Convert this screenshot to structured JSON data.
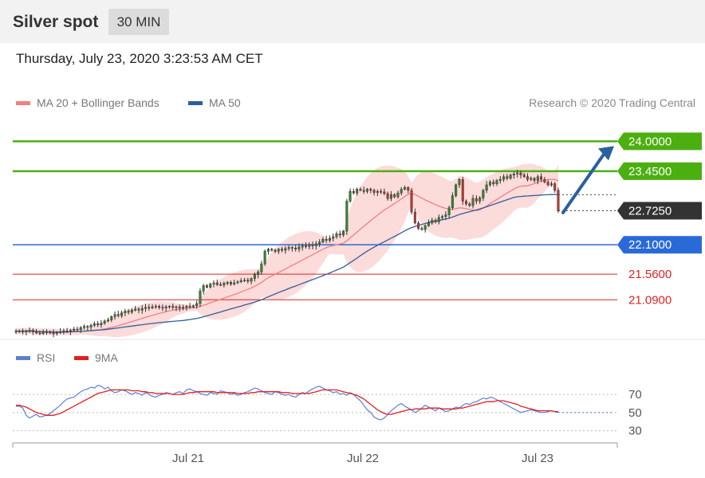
{
  "header": {
    "title": "Silver spot",
    "interval": "30 MIN"
  },
  "timestamp": "Thursday, July 23, 2020 3:23:53 AM CET",
  "legend": {
    "ma20": "MA 20 + Bollinger Bands",
    "ma50": "MA 50",
    "ma20_color": "#f08080",
    "ma50_color": "#2f5f9a",
    "credit": "Research © 2020 Trading Central"
  },
  "rsi_legend": {
    "rsi": "RSI",
    "ma9": "9MA",
    "rsi_color": "#5b7fd6",
    "ma9_color": "#e02020"
  },
  "chart_data": [
    {
      "type": "line",
      "subtype": "candlestick price chart with moving averages",
      "title": "Silver spot",
      "interval": "30 MIN",
      "x_labels": [
        "Jul 21",
        "Jul 22",
        "Jul 23"
      ],
      "ylim": [
        20.45,
        24.4
      ],
      "levels": [
        {
          "value": 24.0,
          "label": "24.0000",
          "kind": "resistance",
          "color": "#4caf10"
        },
        {
          "value": 23.45,
          "label": "23.4500",
          "kind": "resistance",
          "color": "#4caf10"
        },
        {
          "value": 22.725,
          "label": "22.7250",
          "kind": "last price",
          "color": "#333333"
        },
        {
          "value": 22.1,
          "label": "22.1000",
          "kind": "pivot",
          "color": "#2a6ad8"
        },
        {
          "value": 21.56,
          "label": "21.5600",
          "kind": "support",
          "color": "#dd2222"
        },
        {
          "value": 21.09,
          "label": "21.0900",
          "kind": "support",
          "color": "#dd2222"
        }
      ],
      "series": [
        {
          "name": "MA 20 + Bollinger Bands",
          "color": "#f08080"
        },
        {
          "name": "MA 50",
          "color": "#2f5f9a"
        }
      ],
      "closes": [
        20.51,
        20.52,
        20.5,
        20.52,
        20.53,
        20.5,
        20.48,
        20.47,
        20.49,
        20.5,
        20.48,
        20.47,
        20.49,
        20.5,
        20.52,
        20.51,
        20.53,
        20.55,
        20.54,
        20.58,
        20.6,
        20.59,
        20.62,
        20.65,
        20.63,
        20.66,
        20.7,
        20.72,
        20.78,
        20.82,
        20.8,
        20.85,
        20.88,
        20.86,
        20.9,
        20.92,
        20.9,
        20.93,
        20.95,
        20.94,
        20.96,
        20.97,
        20.95,
        20.94,
        20.96,
        20.97,
        20.95,
        20.96,
        20.94,
        20.95,
        20.97,
        20.96,
        20.98,
        21.02,
        21.25,
        21.35,
        21.32,
        21.38,
        21.4,
        21.37,
        21.36,
        21.39,
        21.41,
        21.38,
        21.4,
        21.42,
        21.44,
        21.45,
        21.43,
        21.48,
        21.55,
        21.6,
        21.75,
        21.98,
        22.02,
        22.0,
        21.98,
        22.02,
        22.0,
        22.03,
        22.05,
        22.04,
        22.02,
        22.06,
        22.08,
        22.07,
        22.1,
        22.08,
        22.12,
        22.15,
        22.2,
        22.18,
        22.22,
        22.25,
        22.3,
        22.28,
        22.35,
        22.9,
        23.08,
        23.05,
        23.12,
        23.1,
        23.08,
        23.12,
        23.1,
        23.06,
        23.08,
        23.07,
        23.04,
        22.95,
        23.02,
        22.98,
        23.05,
        23.12,
        23.15,
        23.1,
        22.7,
        22.5,
        22.4,
        22.38,
        22.45,
        22.5,
        22.55,
        22.52,
        22.6,
        22.62,
        22.65,
        22.78,
        23.0,
        23.2,
        23.3,
        22.9,
        22.85,
        22.82,
        22.95,
        22.9,
        22.96,
        23.1,
        23.2,
        23.25,
        23.22,
        23.28,
        23.3,
        23.35,
        23.32,
        23.38,
        23.4,
        23.42,
        23.38,
        23.35,
        23.3,
        23.32,
        23.28,
        23.35,
        23.3,
        23.25,
        23.2,
        23.22,
        23.1,
        22.72
      ]
    },
    {
      "type": "line",
      "title": "RSI",
      "series": [
        {
          "name": "RSI",
          "color": "#5b7fd6"
        },
        {
          "name": "9MA",
          "color": "#e02020"
        }
      ],
      "x_labels": [
        "Jul 21",
        "Jul 22",
        "Jul 23"
      ],
      "y_ticks": [
        70,
        50,
        30
      ],
      "ylim": [
        20,
        85
      ],
      "rsi": [
        57,
        57,
        55,
        47,
        44,
        46,
        48,
        45,
        46,
        47,
        49,
        52,
        55,
        58,
        62,
        65,
        66,
        67,
        70,
        73,
        75,
        76,
        78,
        77,
        80,
        79,
        76,
        78,
        74,
        72,
        73,
        75,
        74,
        72,
        70,
        72,
        71,
        69,
        72,
        70,
        68,
        67,
        69,
        70,
        72,
        71,
        70,
        72,
        73,
        71,
        75,
        76,
        74,
        73,
        71,
        70,
        69,
        72,
        71,
        70,
        74,
        73,
        72,
        70,
        71,
        69,
        70,
        72,
        73,
        75,
        77,
        76,
        74,
        72,
        71,
        70,
        73,
        72,
        70,
        69,
        70,
        68,
        67,
        70,
        72,
        71,
        74,
        76,
        78,
        79,
        77,
        75,
        74,
        72,
        73,
        70,
        71,
        69,
        72,
        70,
        66,
        63,
        58,
        53,
        50,
        45,
        43,
        42,
        44,
        48,
        52,
        55,
        58,
        60,
        57,
        55,
        53,
        50,
        52,
        55,
        58,
        56,
        54,
        52,
        55,
        53,
        51,
        52,
        54,
        56,
        55,
        58,
        60,
        59,
        61,
        62,
        64,
        66,
        65,
        67,
        66,
        64,
        62,
        60,
        58,
        56,
        54,
        52,
        50,
        51,
        52,
        53,
        52,
        51,
        50,
        50,
        51,
        52,
        51,
        50
      ],
      "ma9": [
        58,
        58,
        57,
        56,
        54,
        52,
        50,
        49,
        48,
        47,
        47,
        47,
        48,
        49,
        51,
        53,
        55,
        57,
        59,
        61,
        63,
        65,
        67,
        69,
        71,
        72,
        73,
        74,
        75,
        75,
        75,
        75,
        75,
        75,
        74,
        74,
        74,
        73,
        73,
        72,
        72,
        71,
        71,
        71,
        71,
        71,
        70,
        70,
        70,
        70,
        71,
        72,
        72,
        73,
        73,
        73,
        73,
        73,
        73,
        72,
        72,
        72,
        72,
        72,
        72,
        71,
        71,
        71,
        71,
        72,
        72,
        73,
        73,
        73,
        73,
        73,
        73,
        73,
        72,
        72,
        72,
        71,
        71,
        71,
        71,
        71,
        71,
        72,
        73,
        74,
        75,
        75,
        75,
        75,
        75,
        74,
        73,
        72,
        71,
        70,
        69,
        67,
        65,
        62,
        59,
        56,
        53,
        51,
        49,
        48,
        48,
        49,
        50,
        51,
        52,
        53,
        53,
        54,
        54,
        54,
        54,
        55,
        55,
        55,
        55,
        54,
        54,
        54,
        54,
        54,
        55,
        55,
        56,
        57,
        58,
        59,
        60,
        61,
        62,
        62,
        62,
        63,
        63,
        63,
        62,
        61,
        60,
        59,
        57,
        56,
        55,
        54,
        53,
        52,
        52,
        52,
        52,
        52,
        51,
        51
      ]
    }
  ]
}
